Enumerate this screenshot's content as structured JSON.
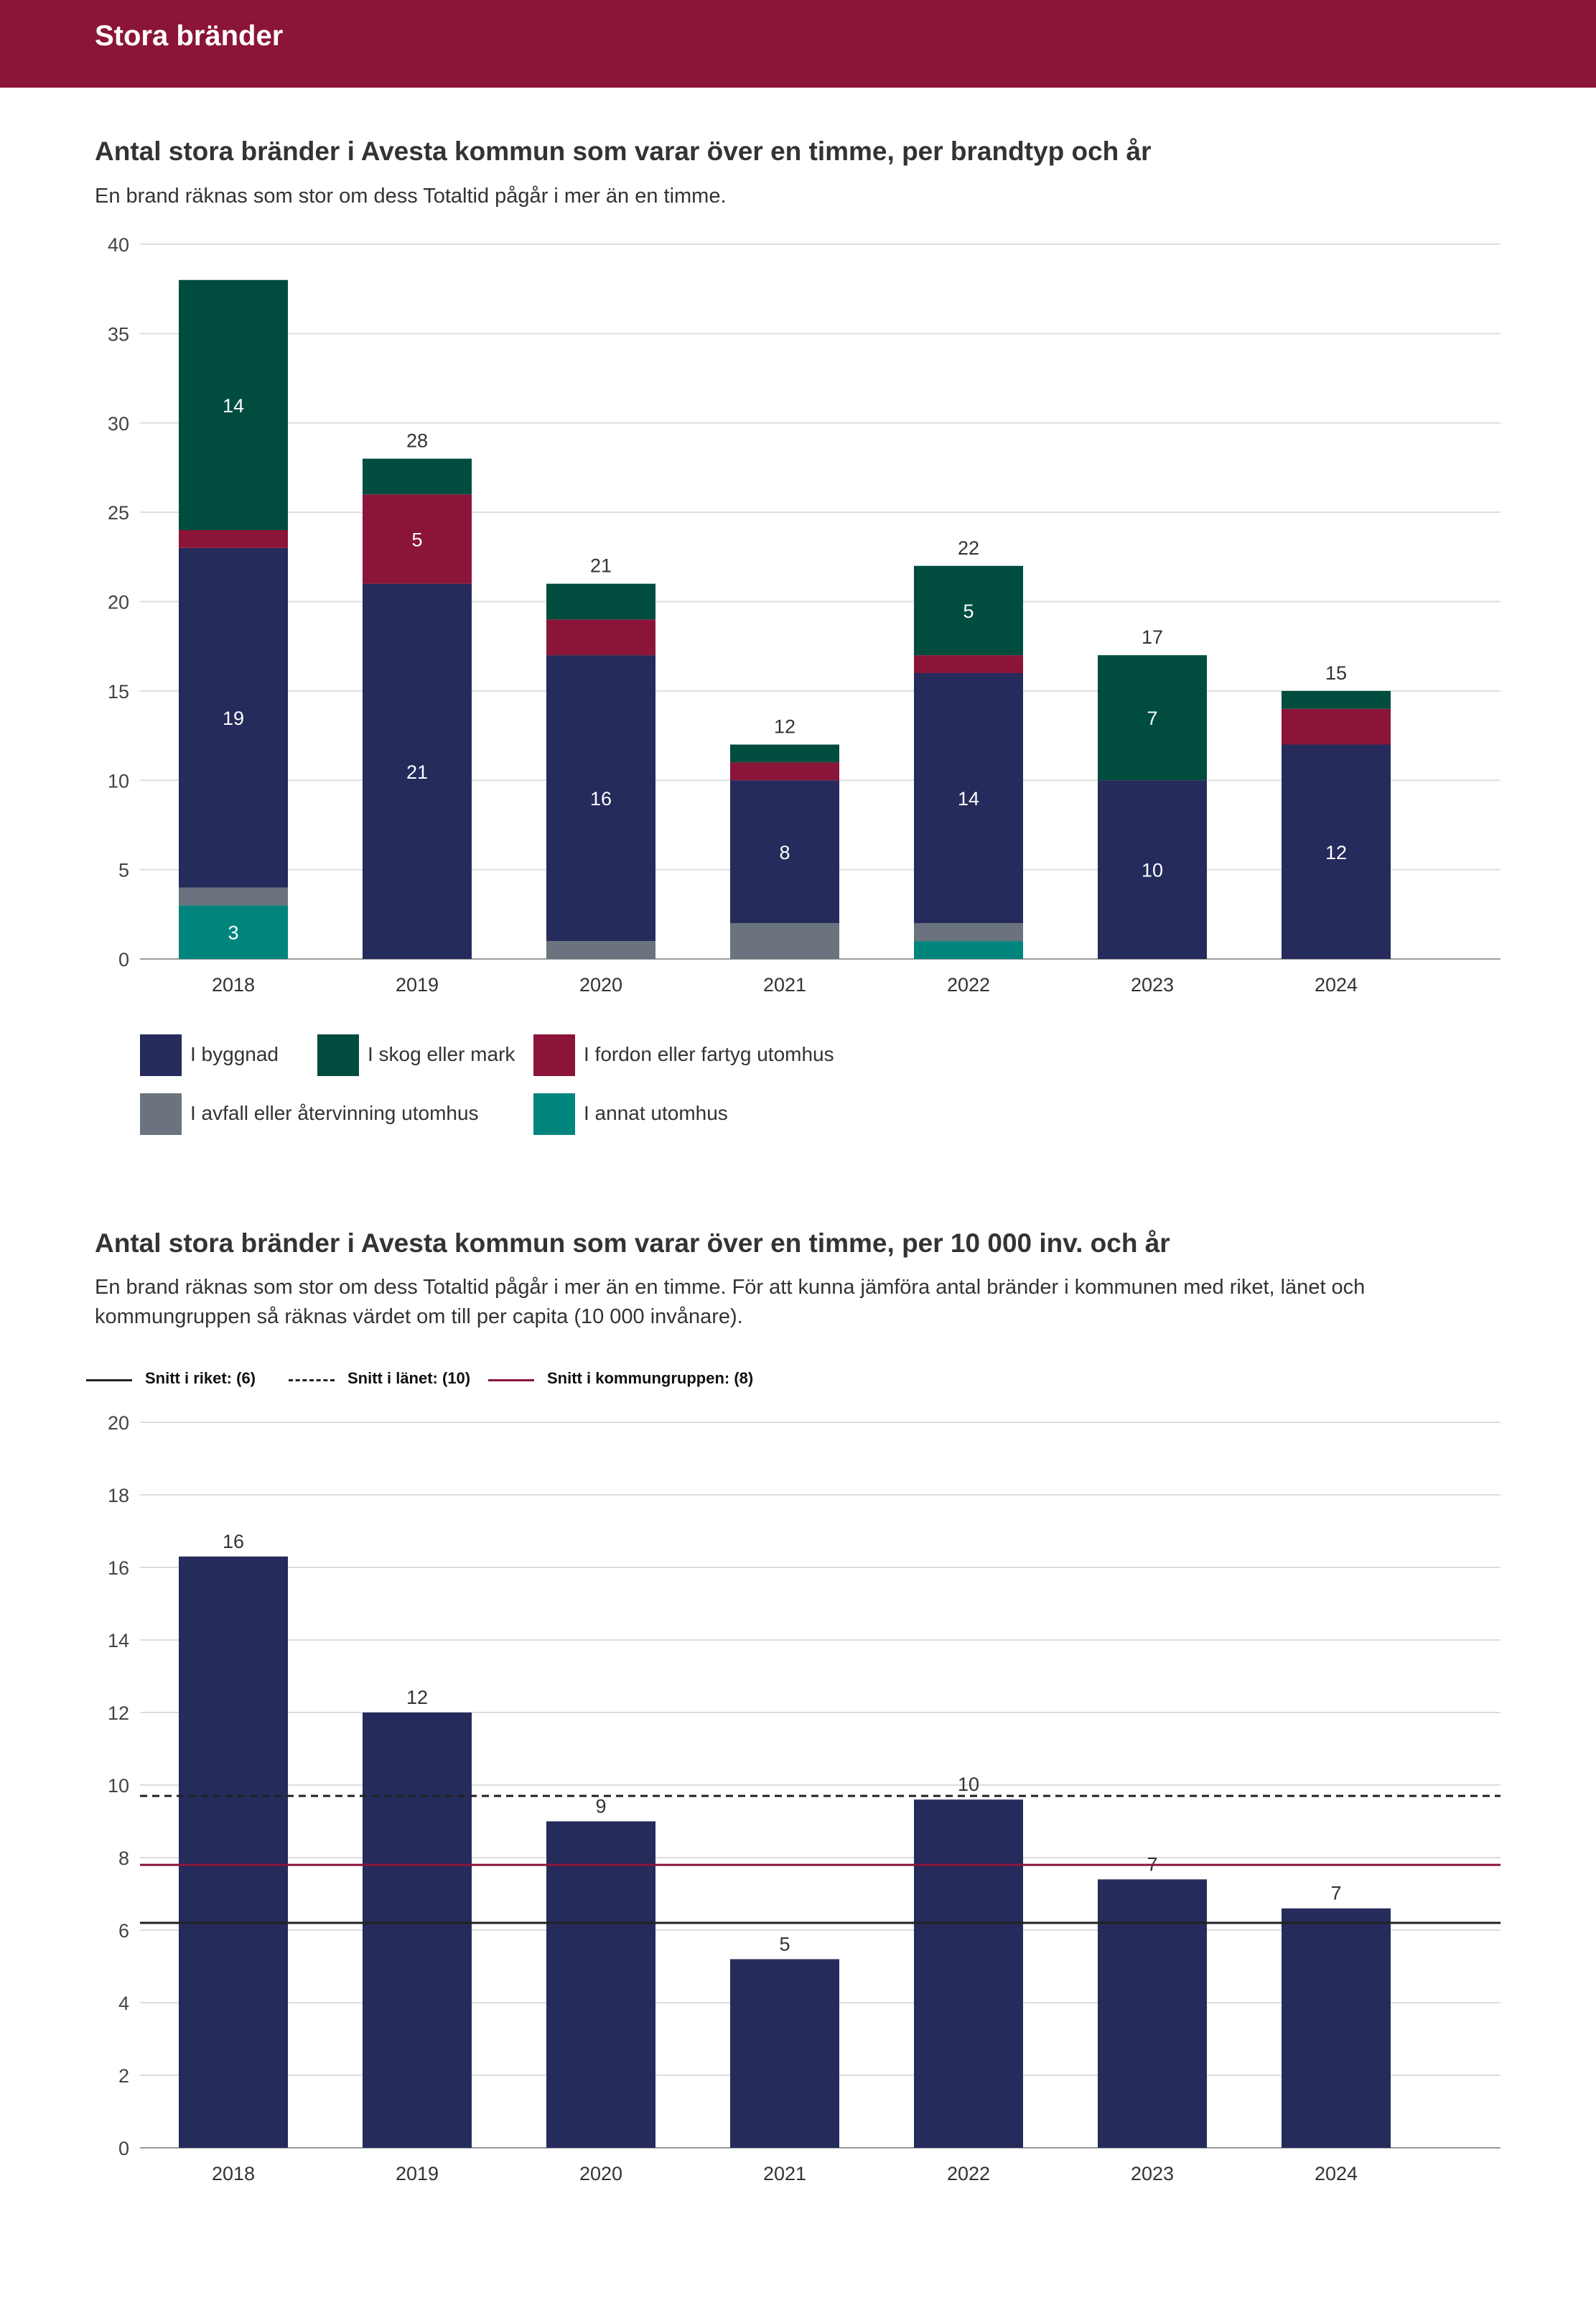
{
  "header": {
    "title": "Stora bränder"
  },
  "section1": {
    "title": "Antal stora bränder i Avesta kommun som varar över en timme, per brandtyp och år",
    "description": "En brand räknas som stor om dess Totaltid pågår i mer än en timme."
  },
  "section2": {
    "title": "Antal stora bränder i Avesta kommun som varar över en timme, per 10 000 inv. och år",
    "description": "En brand räknas som stor om dess Totaltid pågår i mer än en timme. För att kunna jämföra antal bränder i kommunen med riket, länet och kommungruppen så räknas värdet om till per capita (10 000 invånare)."
  },
  "legend": [
    {
      "label": "I byggnad",
      "color": "#252b5b"
    },
    {
      "label": "I skog eller mark",
      "color": "#004d3f"
    },
    {
      "label": "I fordon eller fartyg utomhus",
      "color": "#8b1538"
    },
    {
      "label": "I avfall eller återvinning utomhus",
      "color": "#6b737e"
    },
    {
      "label": "I annat utomhus",
      "color": "#00857c"
    }
  ],
  "ref_legend": [
    {
      "label": "Snitt i riket: (6)",
      "style": "solid",
      "color": "#222222"
    },
    {
      "label": "Snitt i länet: (10)",
      "style": "dashed",
      "color": "#222222"
    },
    {
      "label": "Snitt i kommungruppen: (8)",
      "style": "solid",
      "color": "#8b1538"
    }
  ],
  "chart_data": [
    {
      "type": "bar",
      "stacked": true,
      "title": "Antal stora bränder i Avesta kommun som varar över en timme, per brandtyp och år",
      "categories": [
        "2018",
        "2019",
        "2020",
        "2021",
        "2022",
        "2023",
        "2024"
      ],
      "series": [
        {
          "name": "I annat utomhus",
          "color": "#00857c",
          "values": [
            3,
            0,
            0,
            0,
            1,
            0,
            0
          ]
        },
        {
          "name": "I avfall eller återvinning utomhus",
          "color": "#6b737e",
          "values": [
            1,
            0,
            1,
            2,
            1,
            0,
            0
          ]
        },
        {
          "name": "I byggnad",
          "color": "#252b5b",
          "values": [
            19,
            21,
            16,
            8,
            14,
            10,
            12
          ]
        },
        {
          "name": "I fordon eller fartyg utomhus",
          "color": "#8b1538",
          "values": [
            1,
            5,
            2,
            1,
            1,
            0,
            2
          ]
        },
        {
          "name": "I skog eller mark",
          "color": "#004d3f",
          "values": [
            14,
            2,
            2,
            1,
            5,
            7,
            1
          ]
        }
      ],
      "segment_labels": [
        {
          "category": "2018",
          "series": "I annat utomhus",
          "text": "3"
        },
        {
          "category": "2018",
          "series": "I byggnad",
          "text": "19"
        },
        {
          "category": "2018",
          "series": "I skog eller mark",
          "text": "14"
        },
        {
          "category": "2019",
          "series": "I byggnad",
          "text": "21"
        },
        {
          "category": "2019",
          "series": "I fordon eller fartyg utomhus",
          "text": "5"
        },
        {
          "category": "2020",
          "series": "I byggnad",
          "text": "16"
        },
        {
          "category": "2021",
          "series": "I byggnad",
          "text": "8"
        },
        {
          "category": "2022",
          "series": "I byggnad",
          "text": "14"
        },
        {
          "category": "2022",
          "series": "I skog eller mark",
          "text": "5"
        },
        {
          "category": "2023",
          "series": "I byggnad",
          "text": "10"
        },
        {
          "category": "2023",
          "series": "I skog eller mark",
          "text": "7"
        },
        {
          "category": "2024",
          "series": "I byggnad",
          "text": "12"
        }
      ],
      "total_labels": [
        "",
        "28",
        "21",
        "12",
        "22",
        "17",
        "15"
      ],
      "ylim": [
        0,
        40
      ],
      "yticks": [
        0,
        5,
        10,
        15,
        20,
        25,
        30,
        35,
        40
      ],
      "xlabel": "",
      "ylabel": ""
    },
    {
      "type": "bar",
      "title": "Antal stora bränder i Avesta kommun som varar över en timme, per 10 000 inv. och år",
      "categories": [
        "2018",
        "2019",
        "2020",
        "2021",
        "2022",
        "2023",
        "2024"
      ],
      "values": [
        16.3,
        12.0,
        9.0,
        5.2,
        9.6,
        7.4,
        6.6
      ],
      "value_labels": [
        "16",
        "12",
        "9",
        "5",
        "10",
        "7",
        "7"
      ],
      "color": "#252b5b",
      "reference_lines": [
        {
          "name": "Snitt i riket",
          "value": 6.2,
          "style": "solid",
          "color": "#222222"
        },
        {
          "name": "Snitt i länet",
          "value": 9.7,
          "style": "dashed",
          "color": "#222222"
        },
        {
          "name": "Snitt i kommungruppen",
          "value": 7.8,
          "style": "solid",
          "color": "#8b1538"
        }
      ],
      "ylim": [
        0,
        20
      ],
      "yticks": [
        0,
        2,
        4,
        6,
        8,
        10,
        12,
        14,
        16,
        18,
        20
      ],
      "xlabel": "",
      "ylabel": ""
    }
  ]
}
